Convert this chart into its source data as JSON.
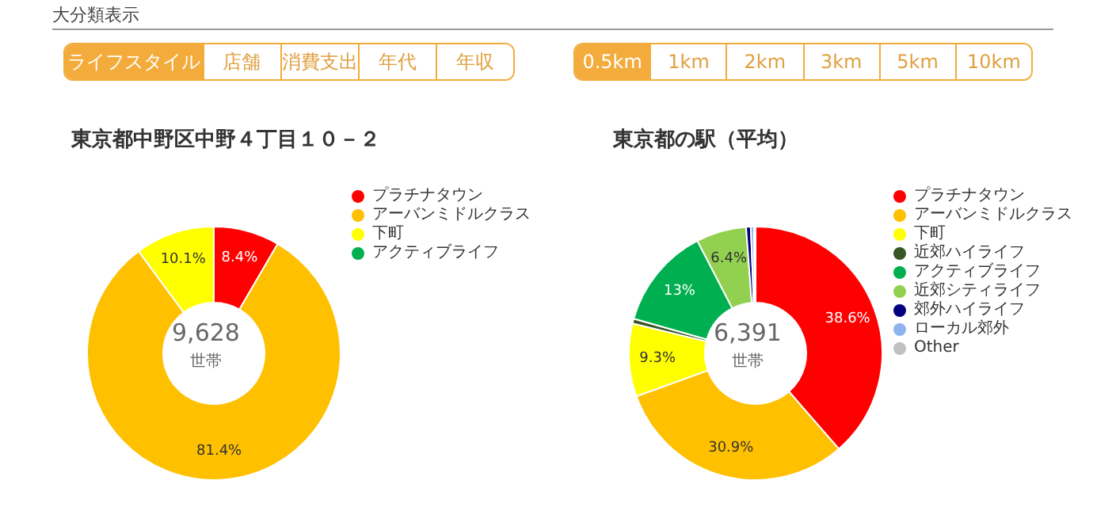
{
  "chart_data": [
    {
      "type": "other",
      "title": "大分類表示",
      "annotations": [
        "ライフスタイル",
        "店舗",
        "消費支出",
        "年代",
        "年収"
      ]
    },
    {
      "type": "other",
      "annotations": [
        "0.5km",
        "1km",
        "2km",
        "3km",
        "5km",
        "10km"
      ]
    },
    {
      "type": "donut",
      "title": "東京都中野区中野４丁目１０－２",
      "categories": [
        "プラチナタウン",
        "アーバンミドルクラス",
        "下町",
        "アクティブライフ"
      ],
      "values": [
        8.4,
        81.4,
        10.1,
        0
      ],
      "colors": [
        "#ff0000",
        "#ffc000",
        "#ffff00",
        "#00b050"
      ],
      "value_labels": [
        "8.4%",
        "81.4%",
        "10.1%",
        null
      ],
      "annotations": [
        "9,628",
        "世帯"
      ],
      "legend": "right"
    },
    {
      "type": "donut",
      "title": "東京都の駅（平均）",
      "categories": [
        "プラチナタウン",
        "アーバンミドルクラス",
        "下町",
        "近郊ハイライフ",
        "アクティブライフ",
        "近郊シティライフ",
        "郊外ハイライフ",
        "ローカル郊外",
        "Other"
      ],
      "values": [
        38.6,
        30.9,
        9.3,
        0.6,
        13,
        6.4,
        0.6,
        0.4,
        0.2
      ],
      "colors": [
        "#ff0000",
        "#ffc000",
        "#ffff00",
        "#375623",
        "#00b050",
        "#92d050",
        "#000080",
        "#8eb4f0",
        "#c0c0c0"
      ],
      "value_labels": [
        "38.6%",
        "30.9%",
        "9.3%",
        null,
        "13%",
        "6.4%",
        null,
        null,
        null
      ],
      "annotations": [
        "6,391",
        "世帯"
      ],
      "legend": "right"
    }
  ]
}
